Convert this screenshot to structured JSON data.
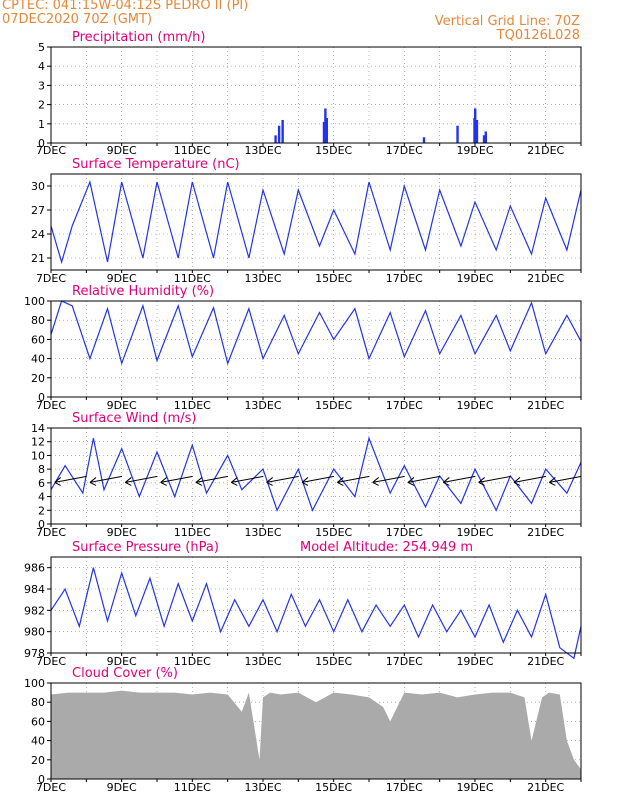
{
  "header": {
    "line1": "CPTEC:   041:15W-04:12S   PEDRO II (PI)",
    "line2": "07DEC2020 70Z (GMT)",
    "right1": "Vertical Grid Line: 70Z",
    "right2": "TQ0126L028"
  },
  "colors": {
    "header": "#e6883a",
    "title": "#e0007a",
    "line": "#2233ee",
    "bar": "#2233ee",
    "cloud": "#aaaaaa",
    "wind_arrow": "#000000"
  },
  "x_axis": {
    "tick_labels": [
      "7DEC",
      "9DEC",
      "11DEC",
      "13DEC",
      "15DEC",
      "17DEC",
      "19DEC",
      "21DEC"
    ],
    "range_days": [
      0,
      15
    ],
    "tick_day_offsets": [
      0,
      2,
      4,
      6,
      8,
      10,
      12,
      14
    ]
  },
  "chart_data": [
    {
      "type": "bar",
      "title": "Precipitation (mm/h)",
      "ylim": [
        0,
        5
      ],
      "yticks": [
        "0",
        "1",
        "2",
        "3",
        "4",
        "5"
      ],
      "x_days": [
        6.35,
        6.45,
        6.55,
        7.72,
        7.76,
        7.8,
        10.55,
        11.5,
        11.98,
        12.0,
        12.05,
        12.25,
        12.3
      ],
      "values": [
        0.4,
        0.9,
        1.2,
        1.1,
        1.8,
        1.3,
        0.3,
        0.9,
        1.3,
        1.8,
        1.2,
        0.4,
        0.6
      ]
    },
    {
      "type": "line",
      "title": "Surface Temperature (nC)",
      "ylim": [
        19.5,
        31.5
      ],
      "yticks": [
        "21",
        "24",
        "27",
        "30"
      ],
      "x_days": [
        0,
        0.3,
        0.6,
        1.1,
        1.6,
        2.0,
        2.6,
        3.0,
        3.6,
        4.0,
        4.6,
        5.0,
        5.6,
        6.0,
        6.6,
        7.0,
        7.6,
        8.0,
        8.6,
        9.0,
        9.6,
        10.0,
        10.6,
        11.0,
        11.6,
        12.0,
        12.6,
        13.0,
        13.6,
        14.0,
        14.6,
        15.0
      ],
      "values": [
        25,
        20.5,
        25,
        30.5,
        20.5,
        30.5,
        21,
        30.5,
        21,
        30.5,
        21,
        30.5,
        21,
        29.5,
        21.5,
        29.5,
        22.5,
        27,
        21.5,
        30.5,
        22,
        30,
        22,
        29.5,
        22.5,
        28,
        22,
        27.5,
        21.5,
        28.5,
        22,
        29.5
      ]
    },
    {
      "type": "line",
      "title": "Relative Humidity (%)",
      "ylim": [
        0,
        100
      ],
      "yticks": [
        "0",
        "20",
        "40",
        "60",
        "80",
        "100"
      ],
      "x_days": [
        0,
        0.3,
        0.6,
        1.1,
        1.6,
        2.0,
        2.6,
        3.0,
        3.6,
        4.0,
        4.6,
        5.0,
        5.6,
        6.0,
        6.6,
        7.0,
        7.6,
        8.0,
        8.6,
        9.0,
        9.6,
        10.0,
        10.6,
        11.0,
        11.6,
        12.0,
        12.6,
        13.0,
        13.6,
        14.0,
        14.6,
        15.0
      ],
      "values": [
        65,
        100,
        95,
        40,
        92,
        35,
        95,
        38,
        95,
        42,
        93,
        35,
        92,
        40,
        85,
        45,
        88,
        60,
        92,
        40,
        88,
        42,
        90,
        45,
        85,
        45,
        85,
        48,
        98,
        45,
        85,
        58
      ]
    },
    {
      "type": "line",
      "title": "Surface Wind (m/s)",
      "ylim": [
        0,
        14
      ],
      "yticks": [
        "0",
        "2",
        "4",
        "6",
        "8",
        "10",
        "12",
        "14"
      ],
      "x_days": [
        0,
        0.4,
        0.9,
        1.2,
        1.5,
        2.0,
        2.5,
        3.0,
        3.5,
        4.0,
        4.4,
        5.0,
        5.4,
        6.0,
        6.4,
        7.0,
        7.4,
        8.0,
        8.6,
        9.0,
        9.6,
        10.0,
        10.6,
        11.0,
        11.6,
        12.0,
        12.6,
        13.0,
        13.6,
        14.0,
        14.6,
        15.0
      ],
      "values": [
        5,
        8.5,
        4.5,
        12.5,
        5,
        11,
        4,
        10.5,
        4,
        11.5,
        4.5,
        10,
        5,
        8,
        2,
        8,
        2,
        8,
        4,
        12.5,
        4.5,
        8.5,
        2.5,
        7,
        3,
        8,
        2,
        7,
        3,
        8,
        4.5,
        9
      ],
      "wind_arrows_x_days": [
        0.5,
        1.5,
        2.5,
        3.5,
        4.5,
        5.5,
        6.5,
        7.5,
        8.5,
        9.5,
        10.5,
        11.5,
        12.5,
        13.5,
        14.5
      ]
    },
    {
      "type": "line",
      "title": "Surface Pressure (hPa)",
      "annotation": "Model Altitude: 254.949 m",
      "ylim": [
        978,
        987
      ],
      "yticks": [
        "978",
        "980",
        "982",
        "984",
        "986"
      ],
      "x_days": [
        0,
        0.4,
        0.8,
        1.2,
        1.6,
        2.0,
        2.4,
        2.8,
        3.2,
        3.6,
        4.0,
        4.4,
        4.8,
        5.2,
        5.6,
        6.0,
        6.4,
        6.8,
        7.2,
        7.6,
        8.0,
        8.4,
        8.8,
        9.2,
        9.6,
        10.0,
        10.4,
        10.8,
        11.2,
        11.6,
        12.0,
        12.4,
        12.8,
        13.2,
        13.6,
        14.0,
        14.4,
        14.8,
        15.0
      ],
      "values": [
        982,
        984,
        980.5,
        986,
        981,
        985.5,
        981.5,
        985,
        980.5,
        984.5,
        981,
        984.5,
        980,
        983,
        980.5,
        983,
        980,
        983.5,
        980.5,
        983,
        980,
        983,
        980,
        982.5,
        980.5,
        982.5,
        979.5,
        982.5,
        980,
        982,
        979.5,
        982.5,
        979,
        982,
        979.5,
        983.5,
        978.5,
        977.5,
        980.5
      ]
    },
    {
      "type": "area",
      "title": "Cloud Cover (%)",
      "ylim": [
        0,
        100
      ],
      "yticks": [
        "0",
        "20",
        "40",
        "60",
        "80",
        "100"
      ],
      "x_days": [
        0,
        0.5,
        1.0,
        1.5,
        2.0,
        2.5,
        3.0,
        3.5,
        4.0,
        4.5,
        5.0,
        5.4,
        5.6,
        5.9,
        6.0,
        6.2,
        6.5,
        7.0,
        7.5,
        8.0,
        8.5,
        9.0,
        9.4,
        9.6,
        10.0,
        10.5,
        11.0,
        11.5,
        12.0,
        12.5,
        13.0,
        13.4,
        13.6,
        13.9,
        14.1,
        14.4,
        14.6,
        14.8,
        15.0
      ],
      "values": [
        88,
        90,
        90,
        90,
        92,
        90,
        90,
        90,
        88,
        90,
        88,
        70,
        90,
        20,
        85,
        90,
        88,
        90,
        80,
        90,
        88,
        85,
        75,
        60,
        90,
        88,
        90,
        85,
        88,
        90,
        90,
        85,
        40,
        85,
        90,
        88,
        40,
        20,
        10
      ]
    }
  ]
}
